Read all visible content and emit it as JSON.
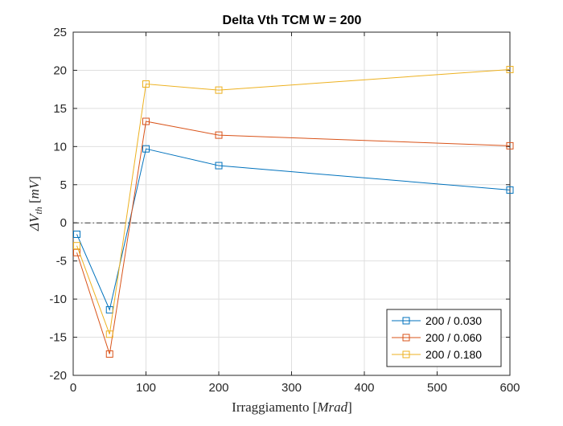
{
  "chart_data": {
    "type": "line",
    "title": "Delta Vth TCM W = 200",
    "xlabel_text": "Irraggiamento",
    "xlabel_unit": "Mrad",
    "ylabel_text": "ΔV",
    "ylabel_sub": "th",
    "ylabel_unit": "mV",
    "xlim": [
      0,
      600
    ],
    "ylim": [
      -20,
      25
    ],
    "xticks": [
      0,
      100,
      200,
      300,
      400,
      500,
      600
    ],
    "yticks": [
      -20,
      -15,
      -10,
      -5,
      0,
      5,
      10,
      15,
      20,
      25
    ],
    "grid": true,
    "legend_position": "bottom-right",
    "reference_line": {
      "y": 0,
      "style": "dash-dot",
      "color": "#000000"
    },
    "marker": "square",
    "x": [
      5,
      50,
      100,
      200,
      600
    ],
    "series": [
      {
        "name": "200 / 0.030",
        "color": "#0072BD",
        "values": [
          -1.5,
          -11.4,
          9.7,
          7.5,
          4.3
        ]
      },
      {
        "name": "200 / 0.060",
        "color": "#D95319",
        "values": [
          -3.9,
          -17.2,
          13.3,
          11.5,
          10.1
        ]
      },
      {
        "name": "200 / 0.180",
        "color": "#EDB120",
        "values": [
          -3.0,
          -14.6,
          18.2,
          17.4,
          20.1
        ]
      }
    ]
  }
}
